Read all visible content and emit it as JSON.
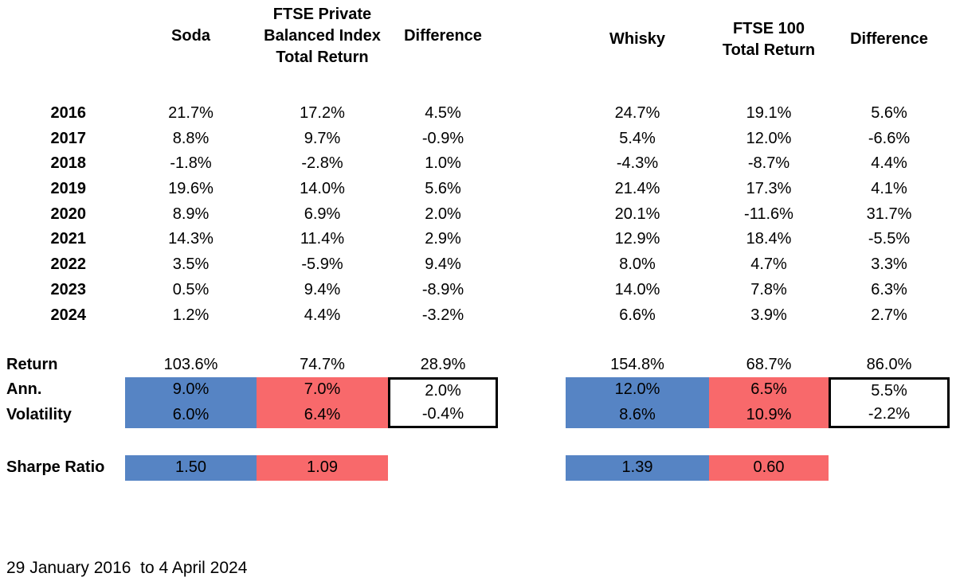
{
  "chart_data": {
    "type": "table",
    "footer": "29 January 2016  to 4 April 2024",
    "row_labels": [
      "2016",
      "2017",
      "2018",
      "2019",
      "2020",
      "2021",
      "2022",
      "2023",
      "2024"
    ],
    "summary_labels": {
      "total": "Return",
      "annualized": "Ann.",
      "volatility": "Volatility",
      "sharpe": "Sharpe Ratio"
    },
    "colors": {
      "asset_fill": "#5684C4",
      "benchmark_fill": "#F8696B",
      "difference_box_border": "#000000",
      "text": "#000000",
      "background": "#FFFFFF"
    },
    "layout_hints": {
      "grid": "off",
      "two_side_by_side_panels": true,
      "highlight_rows": [
        "annualized",
        "volatility",
        "sharpe"
      ]
    },
    "panels": [
      {
        "name": "Soda vs FTSE Private Balanced Index Total Return",
        "headers": {
          "asset": "Soda",
          "benchmark": "FTSE Private\nBalanced Index\nTotal Return",
          "difference": "Difference"
        },
        "rows": [
          [
            "21.7%",
            "17.2%",
            "4.5%"
          ],
          [
            "8.8%",
            "9.7%",
            "-0.9%"
          ],
          [
            "-1.8%",
            "-2.8%",
            "1.0%"
          ],
          [
            "19.6%",
            "14.0%",
            "5.6%"
          ],
          [
            "8.9%",
            "6.9%",
            "2.0%"
          ],
          [
            "14.3%",
            "11.4%",
            "2.9%"
          ],
          [
            "3.5%",
            "-5.9%",
            "9.4%"
          ],
          [
            "0.5%",
            "9.4%",
            "-8.9%"
          ],
          [
            "1.2%",
            "4.4%",
            "-3.2%"
          ]
        ],
        "total_return": [
          "103.6%",
          "74.7%",
          "28.9%"
        ],
        "annualized": [
          "9.0%",
          "7.0%",
          "2.0%"
        ],
        "volatility": [
          "6.0%",
          "6.4%",
          "-0.4%"
        ],
        "sharpe": [
          "1.50",
          "1.09"
        ]
      },
      {
        "name": "Whisky vs FTSE 100 Total Return",
        "headers": {
          "asset": "Whisky",
          "benchmark": "FTSE 100\nTotal Return",
          "difference": "Difference"
        },
        "rows": [
          [
            "24.7%",
            "19.1%",
            "5.6%"
          ],
          [
            "5.4%",
            "12.0%",
            "-6.6%"
          ],
          [
            "-4.3%",
            "-8.7%",
            "4.4%"
          ],
          [
            "21.4%",
            "17.3%",
            "4.1%"
          ],
          [
            "20.1%",
            "-11.6%",
            "31.7%"
          ],
          [
            "12.9%",
            "18.4%",
            "-5.5%"
          ],
          [
            "8.0%",
            "4.7%",
            "3.3%"
          ],
          [
            "14.0%",
            "7.8%",
            "6.3%"
          ],
          [
            "6.6%",
            "3.9%",
            "2.7%"
          ]
        ],
        "total_return": [
          "154.8%",
          "68.7%",
          "86.0%"
        ],
        "annualized": [
          "12.0%",
          "6.5%",
          "5.5%"
        ],
        "volatility": [
          "8.6%",
          "10.9%",
          "-2.2%"
        ],
        "sharpe": [
          "1.39",
          "0.60"
        ]
      }
    ]
  }
}
